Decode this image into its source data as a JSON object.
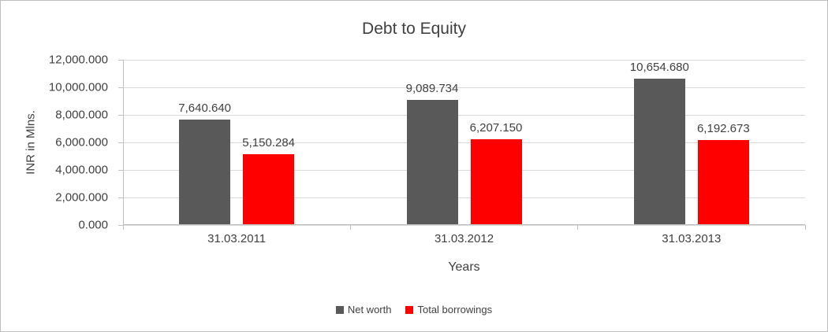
{
  "chart_data": {
    "type": "bar",
    "title": "Debt to Equity",
    "xlabel": "Years",
    "ylabel": "INR in Mlns.",
    "categories": [
      "31.03.2011",
      "31.03.2012",
      "31.03.2013"
    ],
    "series": [
      {
        "name": "Net worth",
        "color": "#595959",
        "values": [
          7640.64,
          9089.734,
          10654.68
        ],
        "labels": [
          "7,640.640",
          "9,089.734",
          "10,654.680"
        ]
      },
      {
        "name": "Total borrowings",
        "color": "#ff0000",
        "values": [
          5150.284,
          6207.15,
          6192.673
        ],
        "labels": [
          "5,150.284",
          "6,207.150",
          "6,192.673"
        ]
      }
    ],
    "ylim": [
      0,
      12000
    ],
    "yticks": [
      {
        "value": 0,
        "label": "0.000"
      },
      {
        "value": 2000,
        "label": "2,000.000"
      },
      {
        "value": 4000,
        "label": "4,000.000"
      },
      {
        "value": 6000,
        "label": "6,000.000"
      },
      {
        "value": 8000,
        "label": "8,000.000"
      },
      {
        "value": 10000,
        "label": "10,000.000"
      },
      {
        "value": 12000,
        "label": "12,000.000"
      }
    ],
    "grid": true,
    "legend_position": "bottom"
  }
}
